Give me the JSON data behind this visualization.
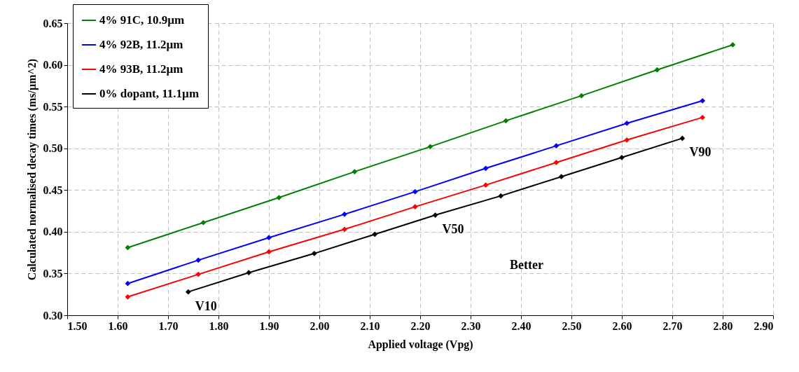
{
  "chart_data": {
    "type": "line",
    "xlabel": "Applied voltage (Vpg)",
    "ylabel": "Calculated normalised decay times (ms/µm^2)",
    "xlim": [
      1.5,
      2.9
    ],
    "xticks": [
      {
        "value": 1.5,
        "label": "1.50"
      },
      {
        "value": 1.6,
        "label": "1.60"
      },
      {
        "value": 1.7,
        "label": "1.70"
      },
      {
        "value": 1.8,
        "label": "1.80"
      },
      {
        "value": 1.9,
        "label": "1.90"
      },
      {
        "value": 2.0,
        "label": "2.00"
      },
      {
        "value": 2.1,
        "label": "2.10"
      },
      {
        "value": 2.2,
        "label": "2.20"
      },
      {
        "value": 2.3,
        "label": "2.30"
      },
      {
        "value": 2.4,
        "label": "2.40"
      },
      {
        "value": 2.5,
        "label": "2.50"
      },
      {
        "value": 2.6,
        "label": "2.60"
      },
      {
        "value": 2.7,
        "label": "2.70"
      },
      {
        "value": 2.8,
        "label": "2.80"
      },
      {
        "value": 2.9,
        "label": "2.90"
      }
    ],
    "ylim": [
      0.3,
      0.65
    ],
    "yticks": [
      {
        "value": 0.3,
        "label": "0.30"
      },
      {
        "value": 0.35,
        "label": "0.35"
      },
      {
        "value": 0.4,
        "label": "0.40"
      },
      {
        "value": 0.45,
        "label": "0.45"
      },
      {
        "value": 0.5,
        "label": "0.50"
      },
      {
        "value": 0.55,
        "label": "0.55"
      },
      {
        "value": 0.6,
        "label": "0.60"
      },
      {
        "value": 0.65,
        "label": "0.65"
      }
    ],
    "grid": true,
    "legend": "top left",
    "marker": "diamond",
    "line_style": "solid",
    "series": [
      {
        "name": "4% 91C, 10.9µm",
        "color": "#008000",
        "x": [
          1.62,
          1.77,
          1.92,
          2.07,
          2.22,
          2.37,
          2.52,
          2.67,
          2.82
        ],
        "values": [
          0.381,
          0.411,
          0.441,
          0.472,
          0.502,
          0.533,
          0.563,
          0.594,
          0.624
        ]
      },
      {
        "name": "4% 92B, 11.2µm",
        "color": "#0000ff",
        "x": [
          1.62,
          1.76,
          1.9,
          2.05,
          2.19,
          2.33,
          2.47,
          2.61,
          2.76
        ],
        "values": [
          0.338,
          0.366,
          0.393,
          0.421,
          0.448,
          0.476,
          0.503,
          0.53,
          0.557
        ]
      },
      {
        "name": "4% 93B, 11.2µm",
        "color": "#ff0000",
        "x": [
          1.62,
          1.76,
          1.9,
          2.05,
          2.19,
          2.33,
          2.47,
          2.61,
          2.76
        ],
        "values": [
          0.322,
          0.349,
          0.376,
          0.403,
          0.43,
          0.456,
          0.483,
          0.51,
          0.537
        ]
      },
      {
        "name": "0% dopant, 11.1µm",
        "color": "#000000",
        "x": [
          1.74,
          1.86,
          1.99,
          2.11,
          2.23,
          2.36,
          2.48,
          2.6,
          2.72
        ],
        "values": [
          0.328,
          0.351,
          0.374,
          0.397,
          0.42,
          0.443,
          0.466,
          0.489,
          0.512
        ]
      }
    ],
    "annotations": [
      {
        "text": "V10",
        "x": 1.74,
        "y": 0.328
      },
      {
        "text": "V50",
        "x": 2.23,
        "y": 0.42
      },
      {
        "text": "V90",
        "x": 2.72,
        "y": 0.512
      },
      "Better"
    ]
  }
}
